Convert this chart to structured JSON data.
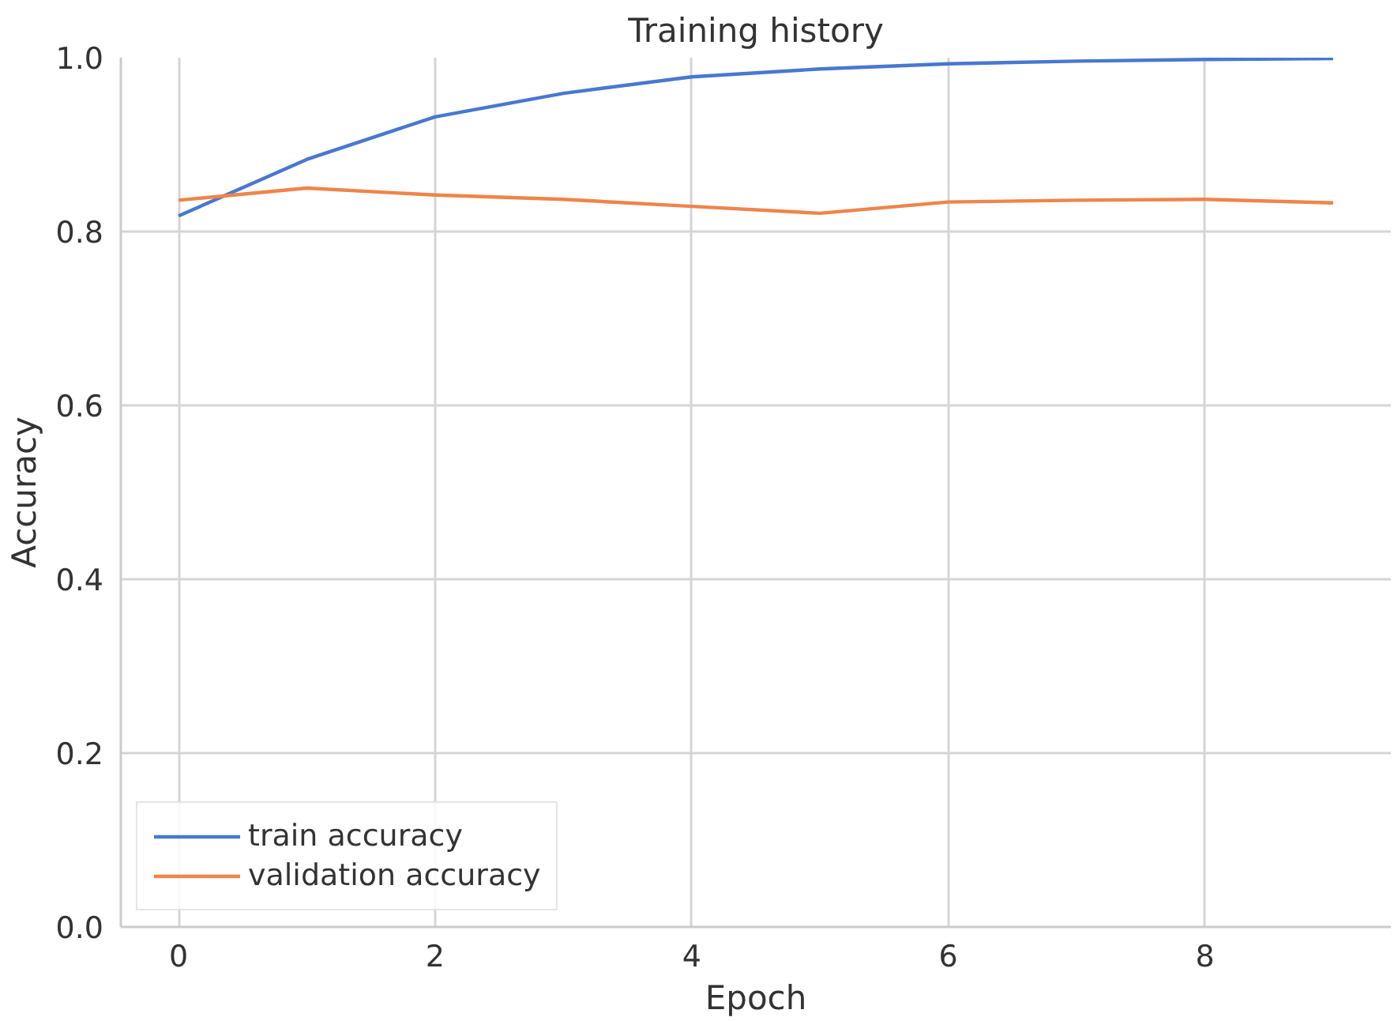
{
  "chart_data": {
    "type": "line",
    "title": "Training history",
    "xlabel": "Epoch",
    "ylabel": "Accuracy",
    "x": [
      0,
      1,
      2,
      3,
      4,
      5,
      6,
      7,
      8,
      9
    ],
    "series": [
      {
        "name": "train accuracy",
        "color": "#4878d0",
        "values": [
          0.818,
          0.883,
          0.932,
          0.959,
          0.978,
          0.987,
          0.993,
          0.996,
          0.998,
          0.999
        ]
      },
      {
        "name": "validation accuracy",
        "color": "#ee854a",
        "values": [
          0.836,
          0.85,
          0.842,
          0.837,
          0.829,
          0.821,
          0.834,
          0.836,
          0.837,
          0.833
        ]
      }
    ],
    "xlim": [
      -0.45,
      9.45
    ],
    "ylim": [
      0,
      1
    ],
    "xticks": [
      0,
      2,
      4,
      6,
      8
    ],
    "yticks": [
      {
        "value": 0,
        "label": "0.0"
      },
      {
        "value": 0.2,
        "label": "0.2"
      },
      {
        "value": 0.4,
        "label": "0.4"
      },
      {
        "value": 0.6,
        "label": "0.6"
      },
      {
        "value": 0.8,
        "label": "0.8"
      },
      {
        "value": 1,
        "label": "1.0"
      }
    ],
    "grid": true,
    "legend": "bottom left",
    "line_style": "solid",
    "marker": "none"
  }
}
